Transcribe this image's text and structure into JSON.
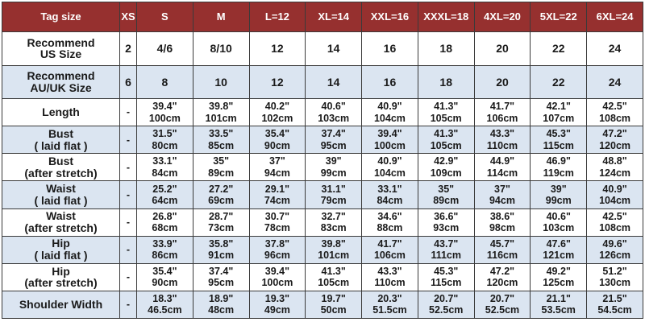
{
  "table": {
    "header": [
      "Tag size",
      "XS",
      "S",
      "M",
      "L=12",
      "XL=14",
      "XXL=16",
      "XXXL=18",
      "4XL=20",
      "5XL=22",
      "6XL=24"
    ],
    "rows": [
      {
        "label": [
          "Recommend",
          "US Size"
        ],
        "cells": [
          [
            "2"
          ],
          [
            "4/6"
          ],
          [
            "8/10"
          ],
          [
            "12"
          ],
          [
            "14"
          ],
          [
            "16"
          ],
          [
            "18"
          ],
          [
            "20"
          ],
          [
            "22"
          ],
          [
            "24"
          ]
        ]
      },
      {
        "label": [
          "Recommend",
          "AU/UK Size"
        ],
        "cells": [
          [
            "6"
          ],
          [
            "8"
          ],
          [
            "10"
          ],
          [
            "12"
          ],
          [
            "14"
          ],
          [
            "16"
          ],
          [
            "18"
          ],
          [
            "20"
          ],
          [
            "22"
          ],
          [
            "24"
          ]
        ]
      },
      {
        "label": [
          "Length"
        ],
        "cells": [
          [
            "-"
          ],
          [
            "39.4\"",
            "100cm"
          ],
          [
            "39.8\"",
            "101cm"
          ],
          [
            "40.2\"",
            "102cm"
          ],
          [
            "40.6\"",
            "103cm"
          ],
          [
            "40.9\"",
            "104cm"
          ],
          [
            "41.3\"",
            "105cm"
          ],
          [
            "41.7\"",
            "106cm"
          ],
          [
            "42.1\"",
            "107cm"
          ],
          [
            "42.5\"",
            "108cm"
          ]
        ]
      },
      {
        "label": [
          "Bust",
          "( laid flat )"
        ],
        "cells": [
          [
            "-"
          ],
          [
            "31.5\"",
            "80cm"
          ],
          [
            "33.5\"",
            "85cm"
          ],
          [
            "35.4\"",
            "90cm"
          ],
          [
            "37.4\"",
            "95cm"
          ],
          [
            "39.4\"",
            "100cm"
          ],
          [
            "41.3\"",
            "105cm"
          ],
          [
            "43.3\"",
            "110cm"
          ],
          [
            "45.3\"",
            "115cm"
          ],
          [
            "47.2\"",
            "120cm"
          ]
        ]
      },
      {
        "label": [
          "Bust",
          "(after stretch)"
        ],
        "cells": [
          [
            "-"
          ],
          [
            "33.1\"",
            "84cm"
          ],
          [
            "35\"",
            "89cm"
          ],
          [
            "37\"",
            "94cm"
          ],
          [
            "39\"",
            "99cm"
          ],
          [
            "40.9\"",
            "104cm"
          ],
          [
            "42.9\"",
            "109cm"
          ],
          [
            "44.9\"",
            "114cm"
          ],
          [
            "46.9\"",
            "119cm"
          ],
          [
            "48.8\"",
            "124cm"
          ]
        ]
      },
      {
        "label": [
          "Waist",
          "( laid flat )"
        ],
        "cells": [
          [
            "-"
          ],
          [
            "25.2\"",
            "64cm"
          ],
          [
            "27.2\"",
            "69cm"
          ],
          [
            "29.1\"",
            "74cm"
          ],
          [
            "31.1\"",
            "79cm"
          ],
          [
            "33.1\"",
            "84cm"
          ],
          [
            "35\"",
            "89cm"
          ],
          [
            "37\"",
            "94cm"
          ],
          [
            "39\"",
            "99cm"
          ],
          [
            "40.9\"",
            "104cm"
          ]
        ]
      },
      {
        "label": [
          "Waist",
          "(after stretch)"
        ],
        "cells": [
          [
            "-"
          ],
          [
            "26.8\"",
            "68cm"
          ],
          [
            "28.7\"",
            "73cm"
          ],
          [
            "30.7\"",
            "78cm"
          ],
          [
            "32.7\"",
            "83cm"
          ],
          [
            "34.6\"",
            "88cm"
          ],
          [
            "36.6\"",
            "93cm"
          ],
          [
            "38.6\"",
            "98cm"
          ],
          [
            "40.6\"",
            "103cm"
          ],
          [
            "42.5\"",
            "108cm"
          ]
        ]
      },
      {
        "label": [
          "Hip",
          "( laid flat )"
        ],
        "cells": [
          [
            "-"
          ],
          [
            "33.9\"",
            "86cm"
          ],
          [
            "35.8\"",
            "91cm"
          ],
          [
            "37.8\"",
            "96cm"
          ],
          [
            "39.8\"",
            "101cm"
          ],
          [
            "41.7\"",
            "106cm"
          ],
          [
            "43.7\"",
            "111cm"
          ],
          [
            "45.7\"",
            "116cm"
          ],
          [
            "47.6\"",
            "121cm"
          ],
          [
            "49.6\"",
            "126cm"
          ]
        ]
      },
      {
        "label": [
          "Hip",
          "(after stretch)"
        ],
        "cells": [
          [
            "-"
          ],
          [
            "35.4\"",
            "90cm"
          ],
          [
            "37.4\"",
            "95cm"
          ],
          [
            "39.4\"",
            "100cm"
          ],
          [
            "41.3\"",
            "105cm"
          ],
          [
            "43.3\"",
            "110cm"
          ],
          [
            "45.3\"",
            "115cm"
          ],
          [
            "47.2\"",
            "120cm"
          ],
          [
            "49.2\"",
            "125cm"
          ],
          [
            "51.2\"",
            "130cm"
          ]
        ]
      },
      {
        "label": [
          "Shoulder Width"
        ],
        "cells": [
          [
            "-"
          ],
          [
            "18.3\"",
            "46.5cm"
          ],
          [
            "18.9\"",
            "48cm"
          ],
          [
            "19.3\"",
            "49cm"
          ],
          [
            "19.7\"",
            "50cm"
          ],
          [
            "20.3\"",
            "51.5cm"
          ],
          [
            "20.7\"",
            "52.5cm"
          ],
          [
            "20.7\"",
            "52.5cm"
          ],
          [
            "21.1\"",
            "53.5cm"
          ],
          [
            "21.5\"",
            "54.5cm"
          ]
        ]
      }
    ]
  },
  "colors": {
    "header_bg": "#96302f",
    "header_text": "#ffffff",
    "row_alt_bg": "#dbe5f1",
    "border": "#3a3a3a"
  }
}
